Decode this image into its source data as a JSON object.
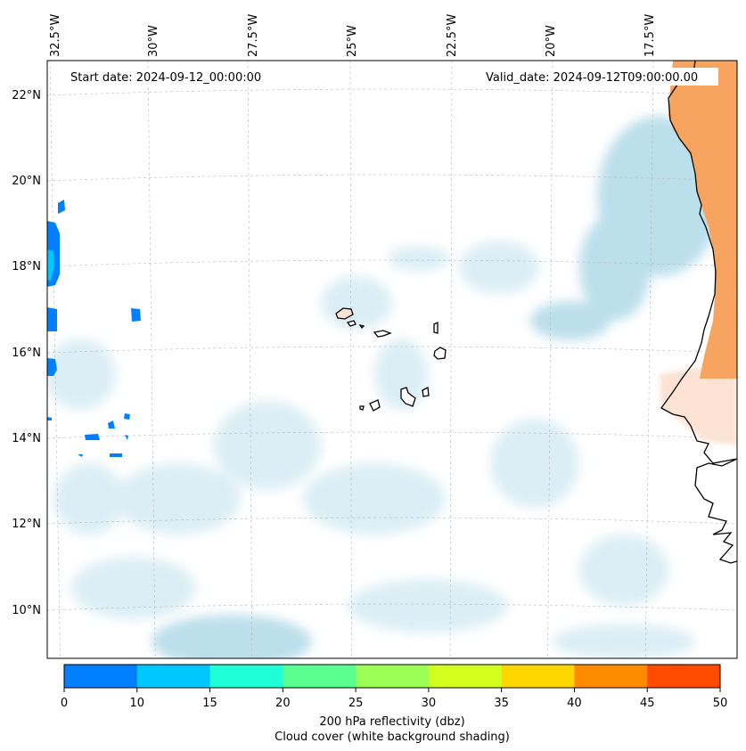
{
  "map": {
    "start_date_text": "Start date: 2024-09-12_00:00:00",
    "valid_date_text": "Valid_date: 2024-09-12T09:00:00.00",
    "lon_labels": [
      "32.5°W",
      "30°W",
      "27.5°W",
      "25°W",
      "22.5°W",
      "20°W",
      "17.5°W"
    ],
    "lat_labels": [
      "22°N",
      "20°N",
      "18°N",
      "16°N",
      "14°N",
      "12°N",
      "10°N"
    ],
    "colorbar": {
      "ticks": [
        "0",
        "10",
        "15",
        "20",
        "25",
        "30",
        "35",
        "40",
        "45",
        "50"
      ],
      "colors": [
        "#0080ff",
        "#00c8ff",
        "#1effd7",
        "#5aff8f",
        "#9bff55",
        "#d2ff1e",
        "#ffd700",
        "#ff8c00",
        "#ff4b00"
      ],
      "label": "200 hPa reflectivity (dbz)",
      "sublabel": "Cloud cover (white background shading)"
    },
    "colors": {
      "cloud_light": "#d8edf4",
      "cloud_mid": "#b5dcea",
      "land_orange": "#f6a460",
      "land_peach": "#fce3d3",
      "gridline": "#b8b8b8"
    }
  }
}
